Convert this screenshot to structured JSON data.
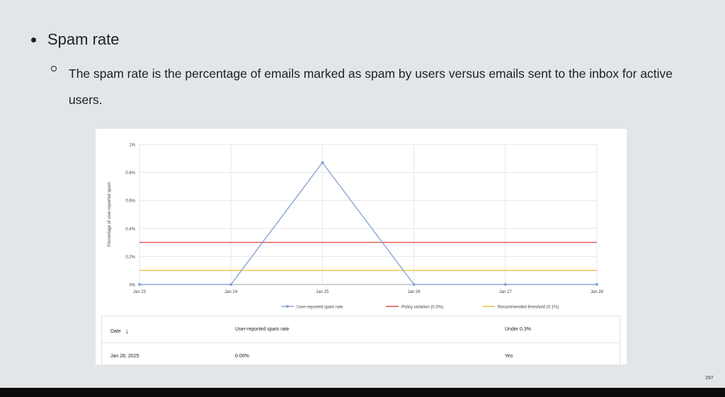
{
  "slide": {
    "bullet": "Spam rate",
    "sub_bullet": "The spam rate is the percentage of emails marked as spam by users versus emails sent to the inbox for active users.",
    "page_number": "297"
  },
  "chart_data": {
    "type": "line",
    "ylabel": "Percentage of user-reported spam",
    "xlabel": "",
    "categories": [
      "Jan 23",
      "Jan 24",
      "Jan 25",
      "Jan 26",
      "Jan 27",
      "Jan 28"
    ],
    "y_ticks": [
      "0%",
      "0.2%",
      "0.4%",
      "0.6%",
      "0.8%",
      "1%"
    ],
    "ylim": [
      0,
      1
    ],
    "grid": true,
    "legend_position": "bottom-right",
    "series": [
      {
        "name": "User-reported spam rate",
        "values": [
          0,
          0,
          0.87,
          0,
          0,
          0
        ],
        "color": "#8aa4d6",
        "markers": true
      },
      {
        "name": "Policy violation (0.3%)",
        "values": [
          0.3,
          0.3,
          0.3,
          0.3,
          0.3,
          0.3
        ],
        "color": "#d9534f",
        "markers": false
      },
      {
        "name": "Recommended threshold (0.1%)",
        "values": [
          0.1,
          0.1,
          0.1,
          0.1,
          0.1,
          0.1
        ],
        "color": "#e8c14a",
        "markers": false
      }
    ]
  },
  "table": {
    "headers": [
      "Date",
      "User-reported spam rate",
      "Under 0.3%"
    ],
    "sort_icon": "arrow-down-icon",
    "rows": [
      [
        "Jan 28, 2025",
        "0.00%",
        "Yes"
      ]
    ]
  }
}
